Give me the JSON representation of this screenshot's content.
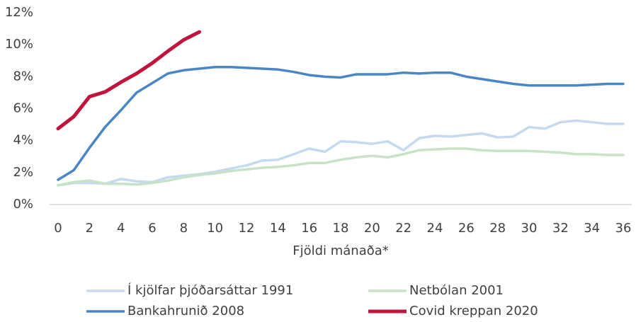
{
  "chart_data": {
    "type": "line",
    "x_label": "Fjöldi mánaða*",
    "x": [
      0,
      1,
      2,
      3,
      4,
      5,
      6,
      7,
      8,
      9,
      10,
      11,
      12,
      13,
      14,
      15,
      16,
      17,
      18,
      19,
      20,
      21,
      22,
      23,
      24,
      25,
      26,
      27,
      28,
      29,
      30,
      31,
      32,
      33,
      34,
      35,
      36
    ],
    "xlim": [
      0,
      36
    ],
    "xticks": [
      0,
      2,
      4,
      6,
      8,
      10,
      12,
      14,
      16,
      18,
      20,
      22,
      24,
      26,
      28,
      30,
      32,
      34,
      36
    ],
    "ylim": [
      0,
      12
    ],
    "yticks": [
      {
        "value": 0,
        "label": "0%"
      },
      {
        "value": 2,
        "label": "2%"
      },
      {
        "value": 4,
        "label": "4%"
      },
      {
        "value": 6,
        "label": "6%"
      },
      {
        "value": 8,
        "label": "8%"
      },
      {
        "value": 10,
        "label": "10%"
      },
      {
        "value": 12,
        "label": "12%"
      }
    ],
    "grid": false,
    "legend": "bottom",
    "series": [
      {
        "name": "Í kjölfar þjóðarsáttar 1991",
        "color": "#c5daf0",
        "values": [
          1.2,
          1.35,
          1.35,
          1.3,
          1.6,
          1.45,
          1.4,
          1.7,
          1.8,
          1.9,
          2.05,
          2.25,
          2.45,
          2.75,
          2.8,
          3.15,
          3.5,
          3.3,
          3.95,
          3.9,
          3.8,
          3.95,
          3.4,
          4.15,
          4.3,
          4.25,
          4.35,
          4.45,
          4.2,
          4.25,
          4.85,
          4.75,
          5.15,
          5.25,
          5.15,
          5.05,
          5.05
        ]
      },
      {
        "name": "Netbólan 2001",
        "color": "#c7e3c7",
        "values": [
          1.2,
          1.4,
          1.5,
          1.3,
          1.3,
          1.25,
          1.35,
          1.5,
          1.7,
          1.85,
          1.95,
          2.1,
          2.2,
          2.3,
          2.35,
          2.45,
          2.6,
          2.6,
          2.8,
          2.95,
          3.05,
          2.95,
          3.15,
          3.4,
          3.45,
          3.5,
          3.5,
          3.4,
          3.35,
          3.35,
          3.35,
          3.3,
          3.25,
          3.15,
          3.15,
          3.1,
          3.1
        ]
      },
      {
        "name": "Bankahrunið 2008",
        "color": "#4a86c5",
        "values": [
          1.55,
          2.15,
          3.55,
          4.85,
          5.9,
          7.0,
          7.6,
          8.2,
          8.4,
          8.5,
          8.6,
          8.6,
          8.55,
          8.5,
          8.45,
          8.3,
          8.1,
          8.0,
          7.95,
          8.15,
          8.15,
          8.15,
          8.25,
          8.2,
          8.25,
          8.25,
          8.0,
          7.85,
          7.7,
          7.55,
          7.45,
          7.45,
          7.45,
          7.45,
          7.5,
          7.55,
          7.55
        ]
      },
      {
        "name": "Covid kreppan 2020",
        "color": "#c0143c",
        "values": [
          4.75,
          5.5,
          6.75,
          7.05,
          7.65,
          8.2,
          8.85,
          9.6,
          10.3,
          10.8,
          null,
          null,
          null,
          null,
          null,
          null,
          null,
          null,
          null,
          null,
          null,
          null,
          null,
          null,
          null,
          null,
          null,
          null,
          null,
          null,
          null,
          null,
          null,
          null,
          null,
          null,
          null
        ]
      }
    ]
  }
}
